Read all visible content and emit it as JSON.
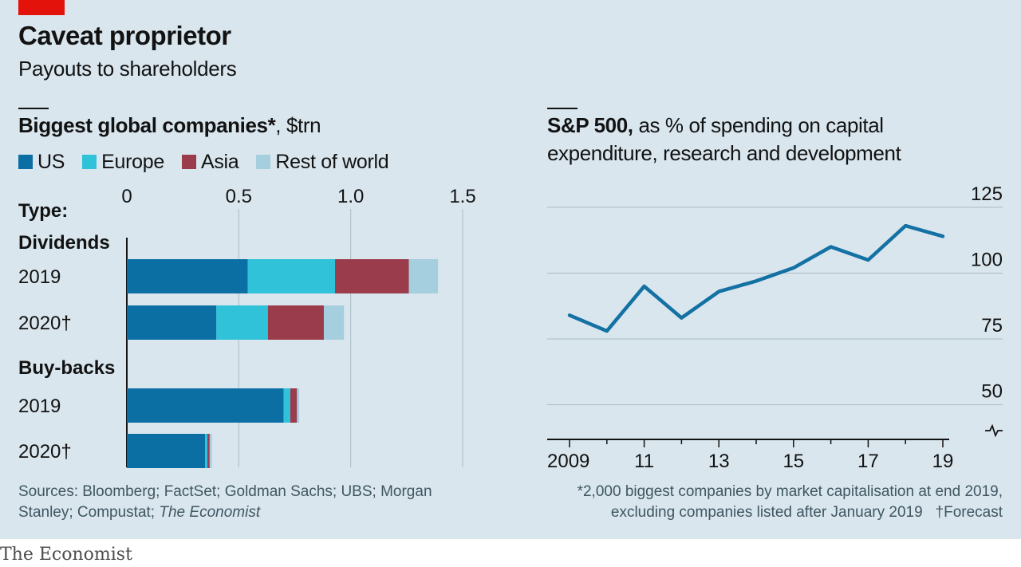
{
  "header": {
    "title": "Caveat proprietor",
    "subtitle": "Payouts to shareholders"
  },
  "left": {
    "title_bold": "Biggest global companies*",
    "title_rest": ", $trn",
    "type_label": "Type:"
  },
  "right": {
    "title_bold": "S&P 500,",
    "title_rest": " as % of spending on capital expenditure, research and development"
  },
  "footer": {
    "sources": "Sources: Bloomberg; FactSet; Goldman Sachs; UBS; Morgan Stanley; Compustat; ",
    "sources_italic": "The Economist",
    "note_line1": "*2,000 biggest companies by market capitalisation at end 2019,",
    "note_line2": "excluding companies listed after January 2019",
    "note_forecast": "†Forecast"
  },
  "brand": "The Economist",
  "colors": {
    "panel_bg": "#d9e6ee",
    "us": "#0c6fa3",
    "europe": "#2fc2d8",
    "asia": "#9b3c4c",
    "rest": "#a5cede",
    "line": "#1471a4",
    "accent_red": "#e3120b"
  },
  "chart_data": [
    {
      "type": "bar",
      "orientation": "horizontal",
      "stacked": true,
      "unit": "$trn",
      "xlim": [
        0,
        1.5
      ],
      "xticks": [
        "0",
        "0.5",
        "1.0",
        "1.5"
      ],
      "legend": "top-left",
      "grid": true,
      "groups": [
        {
          "label": "Dividends",
          "categories": [
            "2019",
            "2020†"
          ]
        },
        {
          "label": "Buy-backs",
          "categories": [
            "2019",
            "2020†"
          ]
        }
      ],
      "series": [
        {
          "name": "US",
          "color": "#0c6fa3",
          "values": [
            0.54,
            0.4,
            0.7,
            0.35
          ]
        },
        {
          "name": "Europe",
          "color": "#2fc2d8",
          "values": [
            0.39,
            0.23,
            0.03,
            0.01
          ]
        },
        {
          "name": "Asia",
          "color": "#9b3c4c",
          "values": [
            0.33,
            0.25,
            0.03,
            0.01
          ]
        },
        {
          "name": "Rest of world",
          "color": "#a5cede",
          "values": [
            0.13,
            0.09,
            0.01,
            0.01
          ]
        }
      ]
    },
    {
      "type": "line",
      "unit": "%",
      "x": [
        "2009",
        "2010",
        "2011",
        "2012",
        "2013",
        "2014",
        "2015",
        "2016",
        "2017",
        "2018",
        "2019"
      ],
      "xticks": [
        "2009",
        "11",
        "13",
        "15",
        "17",
        "19"
      ],
      "ylim": [
        50,
        125
      ],
      "yticks": [
        "125",
        "100",
        "75",
        "50"
      ],
      "axis_break": true,
      "grid": true,
      "series": [
        {
          "values": [
            84,
            78,
            95,
            83,
            93,
            97,
            102,
            110,
            105,
            118,
            114
          ]
        }
      ]
    }
  ]
}
